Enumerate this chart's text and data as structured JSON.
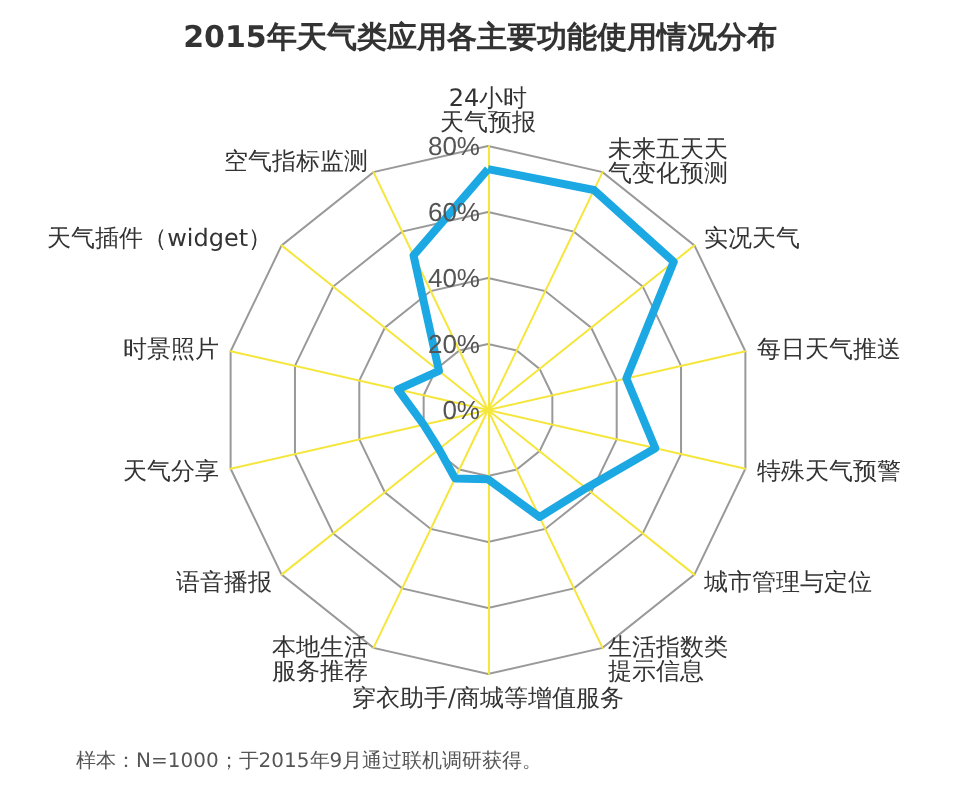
{
  "chart_data": {
    "type": "radar",
    "title": "2015年天气类应用各主要功能使用情况分布",
    "categories": [
      "24小时天气预报",
      "未来五天天气变化预测",
      "实况天气",
      "每日天气推送",
      "特殊天气预警",
      "城市管理与定位",
      "生活指数类提示信息",
      "穿衣助手/商城等增值服务",
      "本地生活服务推荐",
      "语音播报",
      "天气分享",
      "时景照片",
      "天气插件（widget）",
      "空气指标监测"
    ],
    "series": [
      {
        "color": "#1ba8e3",
        "values": [
          73,
          74,
          72,
          43,
          52,
          38,
          36,
          21,
          23,
          19,
          20,
          28,
          19,
          52
        ]
      }
    ],
    "ylim": [
      0,
      80
    ],
    "yticks": [
      {
        "value": 0,
        "label": "0%"
      },
      {
        "value": 20,
        "label": "20%"
      },
      {
        "value": 40,
        "label": "40%"
      },
      {
        "value": 60,
        "label": "60%"
      },
      {
        "value": 80,
        "label": "80%"
      }
    ],
    "marker": "none",
    "line_style": "solid",
    "annotations": [
      "样本：N=1000；于2015年9月通过联机调研获得。"
    ]
  }
}
